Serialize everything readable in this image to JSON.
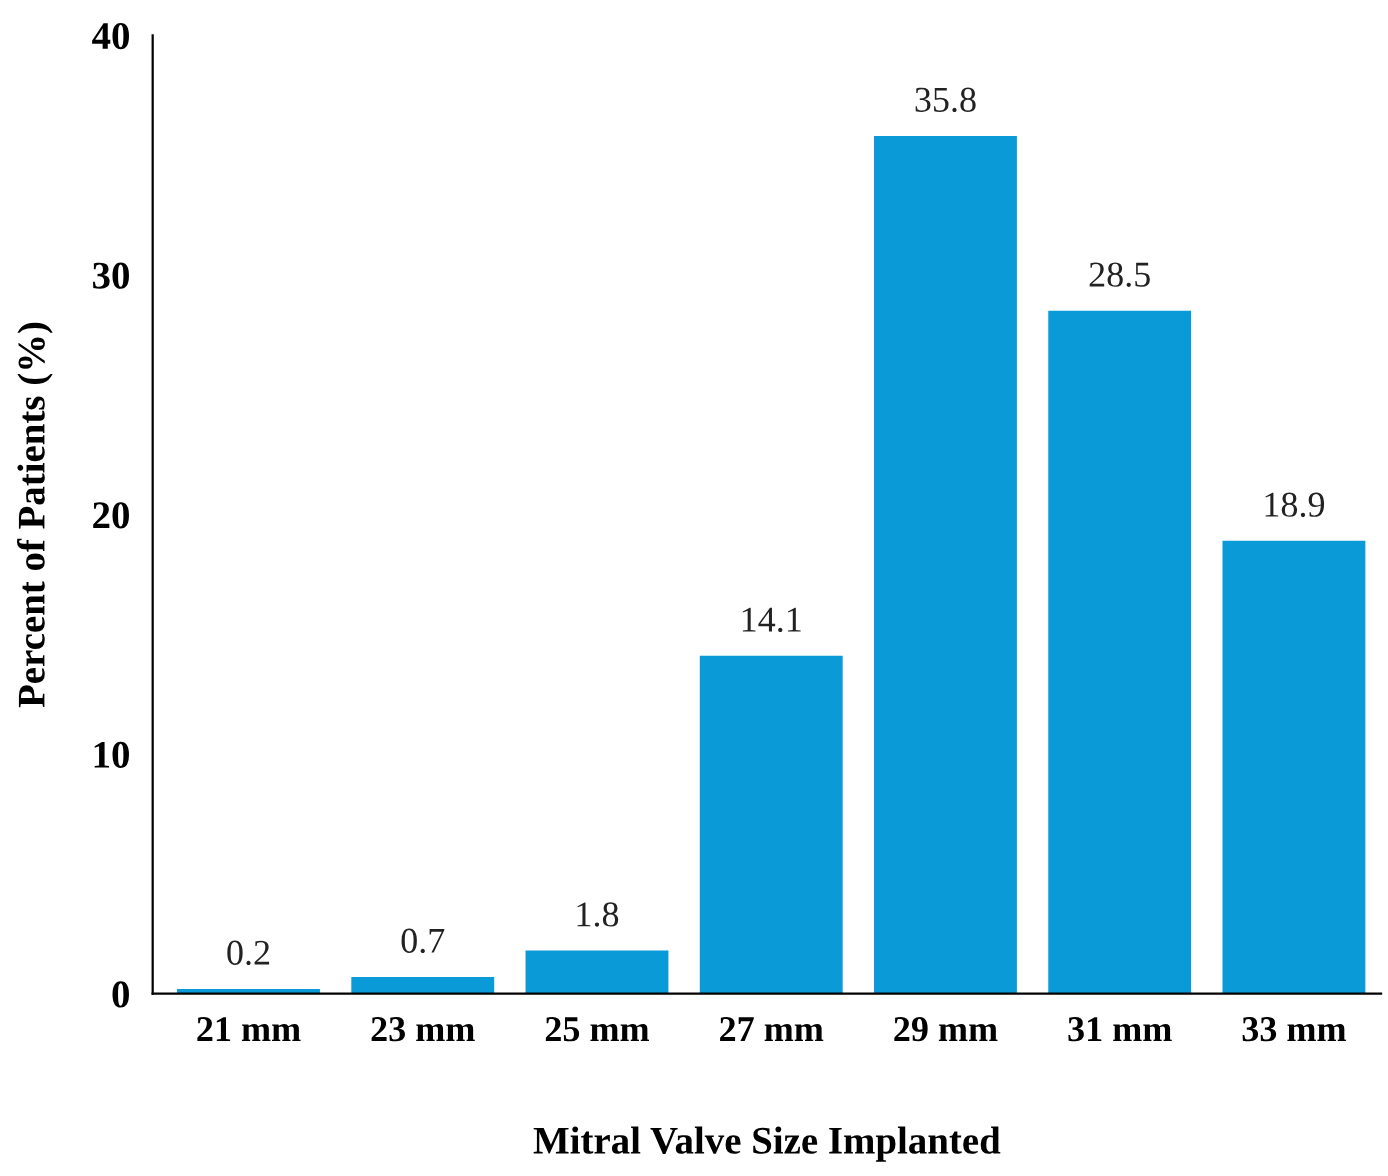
{
  "chart_data": {
    "type": "bar",
    "xlabel": "Mitral Valve Size Implanted",
    "ylabel": "Percent of Patients (%)",
    "categories": [
      "21 mm",
      "23 mm",
      "25 mm",
      "27 mm",
      "29 mm",
      "31 mm",
      "33 mm"
    ],
    "values": [
      0.2,
      0.7,
      1.8,
      14.1,
      35.8,
      28.5,
      18.9
    ],
    "color": "#0a9ad8",
    "ylim": [
      0,
      40
    ],
    "yticks": [
      0,
      10,
      20,
      30,
      40
    ],
    "grid": false,
    "data_labels": true
  }
}
